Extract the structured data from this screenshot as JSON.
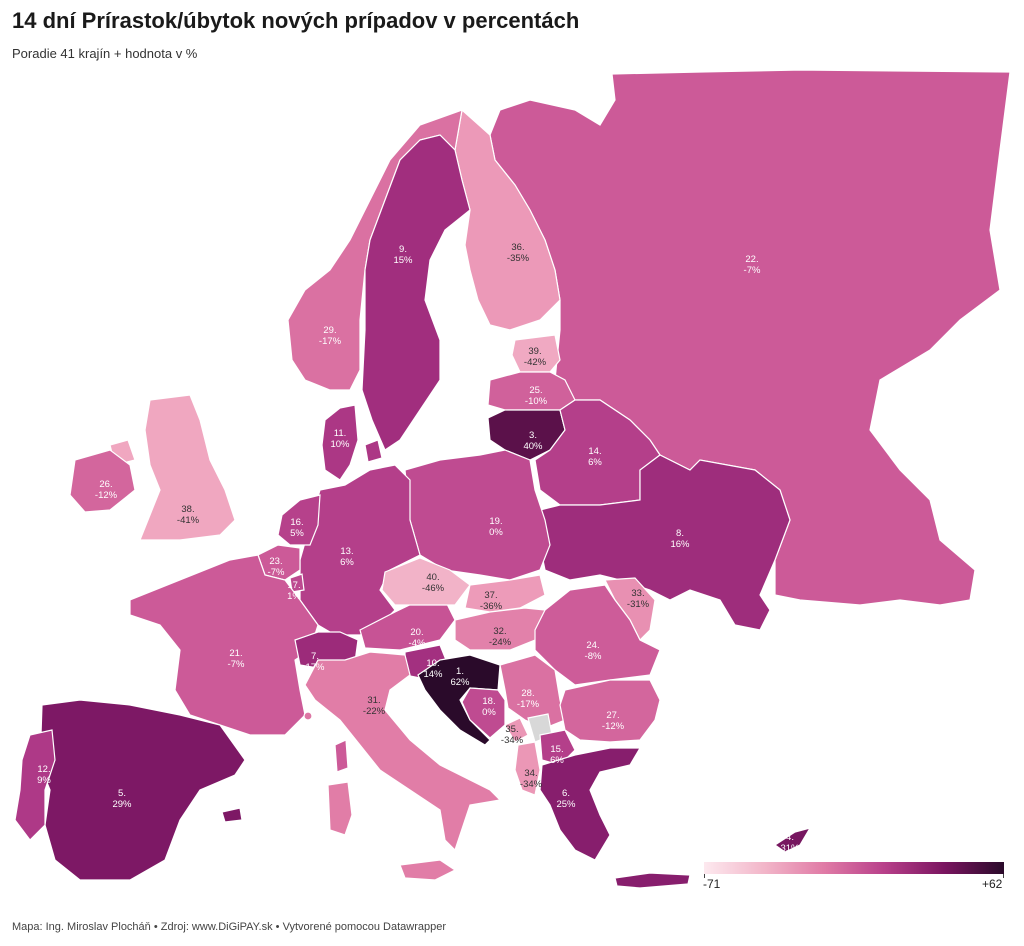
{
  "title": "14 dní Prírastok/úbytok nových prípadov v percentách",
  "subtitle": "Poradie 41 krajín + hodnota v %",
  "footer": "Mapa: Ing. Miroslav Plocháň • Zdroj: www.DiGiPAY.sk • Vytvorené pomocou Datawrapper",
  "legend": {
    "min": "-71",
    "max": "+62",
    "min_value": -71,
    "max_value": 62
  },
  "colors": {
    "low": "#fde9ef",
    "high": "#2a0a2a"
  },
  "regions": [
    {
      "rank": "1.",
      "value": "62%",
      "num": 62,
      "country": "Croatia"
    },
    {
      "rank": "3.",
      "value": "40%",
      "num": 40,
      "country": "Lithuania"
    },
    {
      "rank": "4.",
      "value": "31%",
      "num": 31,
      "country": "Cyprus"
    },
    {
      "rank": "5.",
      "value": "29%",
      "num": 29,
      "country": "Spain"
    },
    {
      "rank": "6.",
      "value": "25%",
      "num": 25,
      "country": "Greece"
    },
    {
      "rank": "7.",
      "value": "17%",
      "num": 17,
      "country": "Switzerland"
    },
    {
      "rank": "8.",
      "value": "16%",
      "num": 16,
      "country": "Ukraine"
    },
    {
      "rank": "9.",
      "value": "15%",
      "num": 15,
      "country": "Sweden"
    },
    {
      "rank": "10.",
      "value": "14%",
      "num": 14,
      "country": "Slovenia"
    },
    {
      "rank": "11.",
      "value": "10%",
      "num": 10,
      "country": "Denmark"
    },
    {
      "rank": "12.",
      "value": "9%",
      "num": 9,
      "country": "Portugal"
    },
    {
      "rank": "13.",
      "value": "6%",
      "num": 6,
      "country": "Germany"
    },
    {
      "rank": "14.",
      "value": "6%",
      "num": 6,
      "country": "Belarus"
    },
    {
      "rank": "15.",
      "value": "6%",
      "num": 6,
      "country": "North Macedonia"
    },
    {
      "rank": "16.",
      "value": "5%",
      "num": 5,
      "country": "Netherlands"
    },
    {
      "rank": "17.",
      "value": "1%",
      "num": 1,
      "country": "Luxembourg"
    },
    {
      "rank": "18.",
      "value": "0%",
      "num": 0,
      "country": "Bosnia and Herzegovina"
    },
    {
      "rank": "19.",
      "value": "0%",
      "num": 0,
      "country": "Poland"
    },
    {
      "rank": "20.",
      "value": "-4%",
      "num": -4,
      "country": "Austria"
    },
    {
      "rank": "21.",
      "value": "-7%",
      "num": -7,
      "country": "France"
    },
    {
      "rank": "22.",
      "value": "-7%",
      "num": -7,
      "country": "Russia"
    },
    {
      "rank": "23.",
      "value": "-7%",
      "num": -7,
      "country": "Belgium"
    },
    {
      "rank": "24.",
      "value": "-8%",
      "num": -8,
      "country": "Romania"
    },
    {
      "rank": "25.",
      "value": "-10%",
      "num": -10,
      "country": "Latvia"
    },
    {
      "rank": "26.",
      "value": "-12%",
      "num": -12,
      "country": "Ireland"
    },
    {
      "rank": "27.",
      "value": "-12%",
      "num": -12,
      "country": "Bulgaria"
    },
    {
      "rank": "28.",
      "value": "-17%",
      "num": -17,
      "country": "Serbia"
    },
    {
      "rank": "29.",
      "value": "-17%",
      "num": -17,
      "country": "Norway"
    },
    {
      "rank": "30.",
      "value": "-19%",
      "num": -19,
      "country": "Monaco"
    },
    {
      "rank": "31.",
      "value": "-22%",
      "num": -22,
      "country": "Italy"
    },
    {
      "rank": "32.",
      "value": "-24%",
      "num": -24,
      "country": "Hungary"
    },
    {
      "rank": "33.",
      "value": "-31%",
      "num": -31,
      "country": "Moldova"
    },
    {
      "rank": "34.",
      "value": "-34%",
      "num": -34,
      "country": "Albania"
    },
    {
      "rank": "35.",
      "value": "-34%",
      "num": -34,
      "country": "Montenegro"
    },
    {
      "rank": "36.",
      "value": "-35%",
      "num": -35,
      "country": "Finland"
    },
    {
      "rank": "37.",
      "value": "-36%",
      "num": -36,
      "country": "Slovakia"
    },
    {
      "rank": "38.",
      "value": "-41%",
      "num": -41,
      "country": "United Kingdom"
    },
    {
      "rank": "39.",
      "value": "-42%",
      "num": -42,
      "country": "Estonia"
    },
    {
      "rank": "40.",
      "value": "-46%",
      "num": -46,
      "country": "Czechia"
    }
  ]
}
